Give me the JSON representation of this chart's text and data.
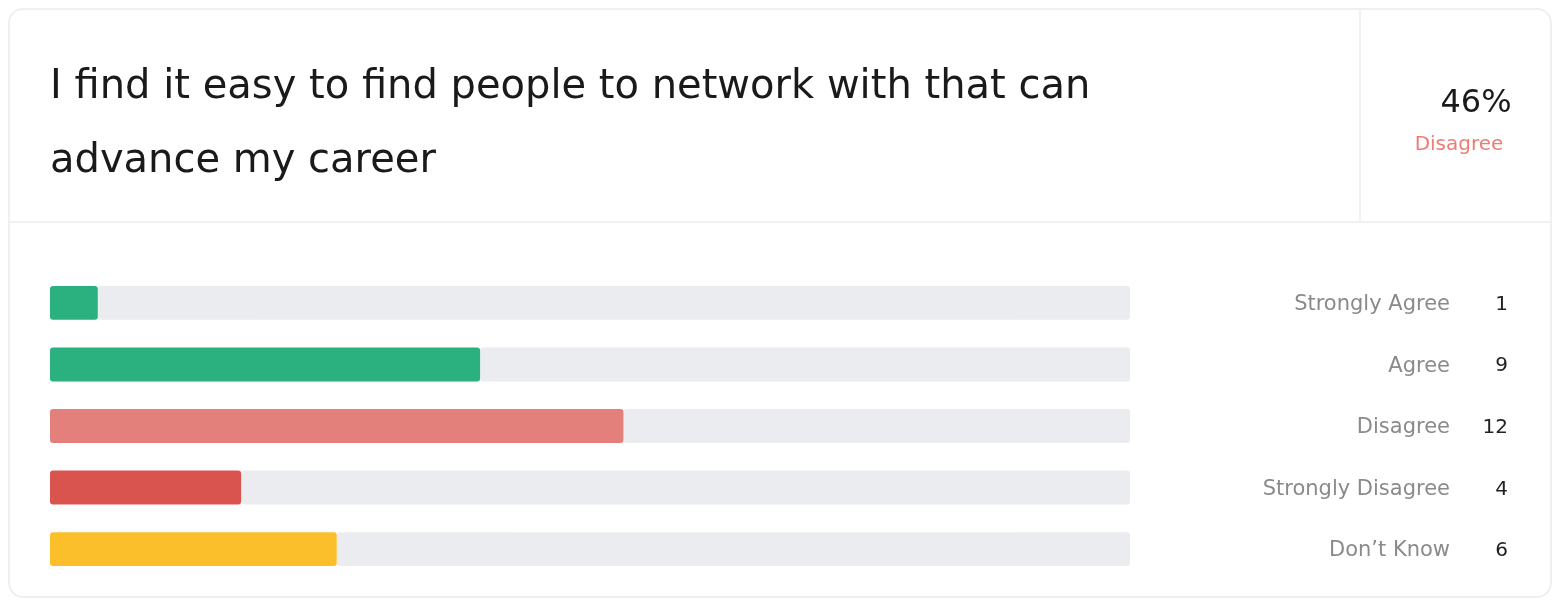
{
  "chart_data": {
    "type": "bar",
    "orientation": "horizontal",
    "title": "I find it easy to find people to network with that can advance my career",
    "annotations": [
      "46%",
      "Disagree"
    ],
    "categories": [
      "Strongly Agree",
      "Agree",
      "Disagree",
      "Strongly Disagree",
      "Don’t Know"
    ],
    "values": [
      1,
      9,
      12,
      4,
      6
    ],
    "colors": [
      "#2bb07f",
      "#2bb07f",
      "#e3807b",
      "#d9544f",
      "#fbbf2b"
    ],
    "xlim": [
      0,
      22.6
    ],
    "data_labels": true
  }
}
